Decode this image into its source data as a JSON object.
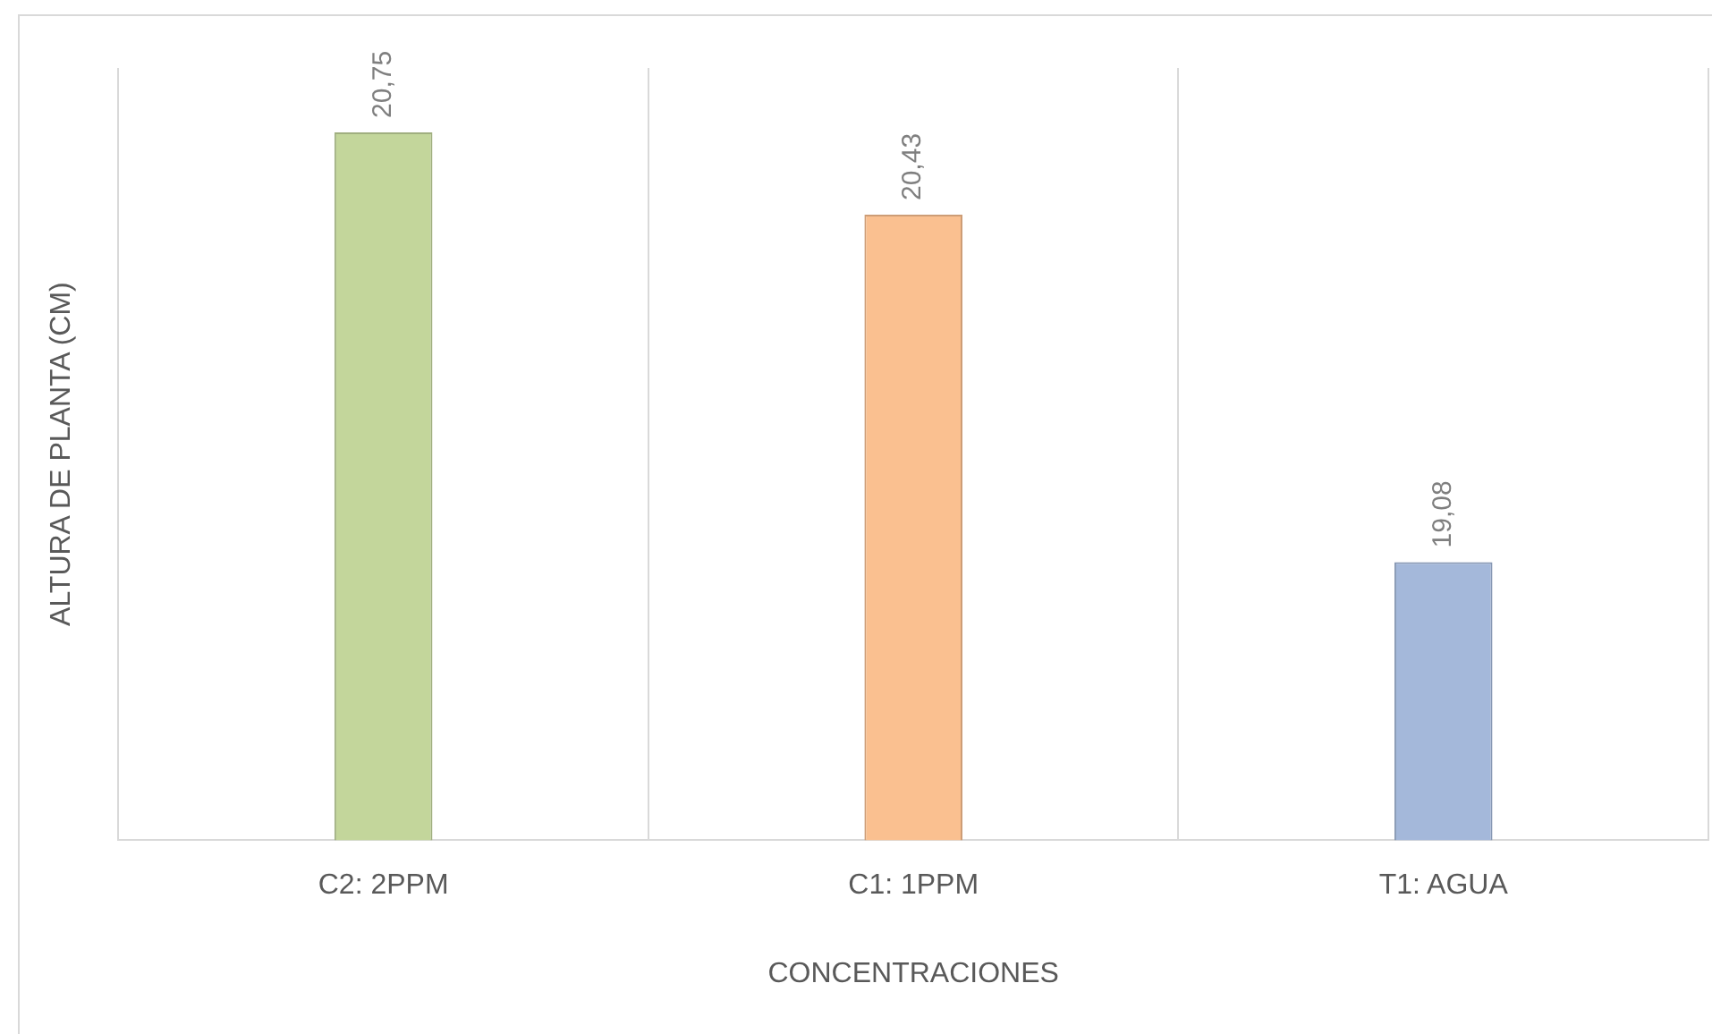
{
  "chart_data": {
    "type": "bar",
    "xlabel": "CONCENTRACIONES",
    "ylabel": "ALTURA DE PLANTA (CM)",
    "categories": [
      "C2: 2PPM",
      "C1: 1PPM",
      "T1: AGUA"
    ],
    "values": [
      20.75,
      20.43,
      19.08
    ],
    "value_labels": [
      "20,75",
      "20,43",
      "19,08"
    ],
    "colors": [
      "#c3d69b",
      "#fac090",
      "#a4b8da"
    ],
    "ylim": [
      18,
      21
    ],
    "tick_labels": "x",
    "grid": "x"
  }
}
